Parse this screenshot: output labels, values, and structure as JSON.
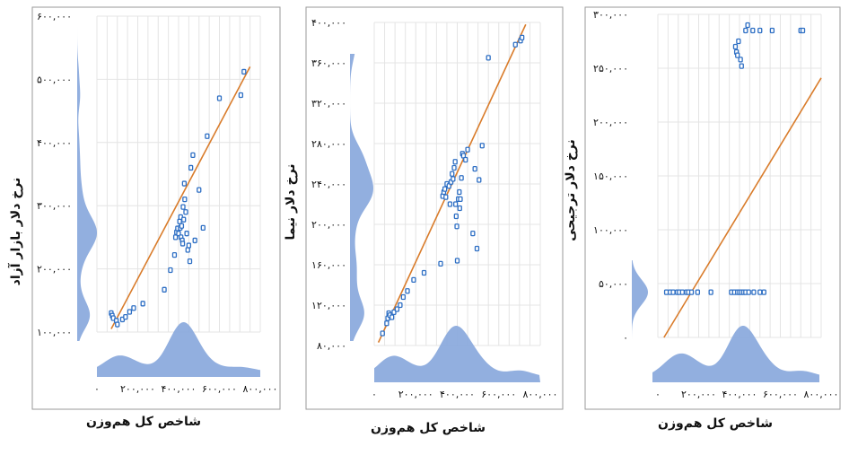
{
  "colors": {
    "point": "#2e6fc4",
    "trend": "#d97c2b",
    "density": "#86a6dc",
    "grid": "#e4e4e4",
    "frame": "#9a9a9a"
  },
  "chart_data": [
    {
      "type": "scatter",
      "title": "",
      "xlabel": "شاخص کل هم‌وزن",
      "ylabel": "نرخ دلار بازار آزاد",
      "xlim": [
        0,
        800000
      ],
      "ylim": [
        100000,
        600000
      ],
      "x_ticks": [
        "۰",
        "۲۰۰,۰۰۰",
        "۴۰۰,۰۰۰",
        "۶۰۰,۰۰۰",
        "۸۰۰,۰۰۰"
      ],
      "y_ticks": [
        "۱۰۰,۰۰۰",
        "۲۰۰,۰۰۰",
        "۳۰۰,۰۰۰",
        "۴۰۰,۰۰۰",
        "۵۰۰,۰۰۰",
        "۶۰۰,۰۰۰"
      ],
      "points": [
        [
          70000,
          130000
        ],
        [
          75000,
          126000
        ],
        [
          80000,
          122000
        ],
        [
          95000,
          118000
        ],
        [
          100000,
          112000
        ],
        [
          125000,
          120000
        ],
        [
          140000,
          124000
        ],
        [
          160000,
          132000
        ],
        [
          180000,
          138000
        ],
        [
          225000,
          145000
        ],
        [
          330000,
          167000
        ],
        [
          360000,
          198000
        ],
        [
          380000,
          222000
        ],
        [
          385000,
          250000
        ],
        [
          390000,
          258000
        ],
        [
          395000,
          264000
        ],
        [
          400000,
          256000
        ],
        [
          405000,
          275000
        ],
        [
          408000,
          265000
        ],
        [
          410000,
          282000
        ],
        [
          412000,
          250000
        ],
        [
          415000,
          268000
        ],
        [
          418000,
          245000
        ],
        [
          420000,
          240000
        ],
        [
          422000,
          298000
        ],
        [
          425000,
          278000
        ],
        [
          428000,
          335000
        ],
        [
          430000,
          310000
        ],
        [
          435000,
          290000
        ],
        [
          440000,
          256000
        ],
        [
          445000,
          230000
        ],
        [
          450000,
          237000
        ],
        [
          455000,
          212000
        ],
        [
          460000,
          360000
        ],
        [
          470000,
          380000
        ],
        [
          480000,
          245000
        ],
        [
          500000,
          325000
        ],
        [
          520000,
          265000
        ],
        [
          540000,
          410000
        ],
        [
          600000,
          470000
        ],
        [
          705000,
          475000
        ],
        [
          720000,
          512000
        ]
      ],
      "trend": [
        [
          70000,
          105000
        ],
        [
          750000,
          520000
        ]
      ]
    },
    {
      "type": "scatter",
      "title": "",
      "xlabel": "شاخص کل هم‌وزن",
      "ylabel": "نرخ دلار نیما",
      "xlim": [
        0,
        800000
      ],
      "ylim": [
        80000,
        400000
      ],
      "x_ticks": [
        "۰",
        "۲۰۰,۰۰۰",
        "۴۰۰,۰۰۰",
        "۶۰۰,۰۰۰",
        "۸۰۰,۰۰۰"
      ],
      "y_ticks": [
        "۸۰,۰۰۰",
        "۱۲۰,۰۰۰",
        "۱۶۰,۰۰۰",
        "۲۰۰,۰۰۰",
        "۲۴۰,۰۰۰",
        "۲۸۰,۰۰۰",
        "۳۲۰,۰۰۰",
        "۳۶۰,۰۰۰",
        "۴۰۰,۰۰۰"
      ],
      "points": [
        [
          40000,
          92000
        ],
        [
          60000,
          102000
        ],
        [
          65000,
          107000
        ],
        [
          70000,
          112000
        ],
        [
          75000,
          110000
        ],
        [
          85000,
          108000
        ],
        [
          95000,
          113000
        ],
        [
          110000,
          116000
        ],
        [
          125000,
          120000
        ],
        [
          140000,
          128000
        ],
        [
          160000,
          134000
        ],
        [
          190000,
          145000
        ],
        [
          240000,
          152000
        ],
        [
          320000,
          161000
        ],
        [
          330000,
          228000
        ],
        [
          335000,
          232000
        ],
        [
          340000,
          235000
        ],
        [
          345000,
          227000
        ],
        [
          350000,
          240000
        ],
        [
          360000,
          238000
        ],
        [
          365000,
          220000
        ],
        [
          370000,
          242000
        ],
        [
          375000,
          250000
        ],
        [
          380000,
          245000
        ],
        [
          385000,
          256000
        ],
        [
          390000,
          262000
        ],
        [
          392000,
          220000
        ],
        [
          395000,
          208000
        ],
        [
          398000,
          198000
        ],
        [
          400000,
          164000
        ],
        [
          405000,
          225000
        ],
        [
          410000,
          232000
        ],
        [
          412000,
          216000
        ],
        [
          415000,
          225000
        ],
        [
          420000,
          246000
        ],
        [
          425000,
          270000
        ],
        [
          430000,
          268000
        ],
        [
          440000,
          264000
        ],
        [
          450000,
          274000
        ],
        [
          475000,
          191000
        ],
        [
          485000,
          255000
        ],
        [
          495000,
          176000
        ],
        [
          505000,
          244000
        ],
        [
          520000,
          278000
        ],
        [
          550000,
          365000
        ],
        [
          680000,
          378000
        ],
        [
          705000,
          382000
        ],
        [
          712000,
          385000
        ]
      ],
      "trend": [
        [
          20000,
          83000
        ],
        [
          730000,
          398000
        ]
      ]
    },
    {
      "type": "scatter",
      "title": "",
      "xlabel": "شاخص کل هم‌وزن",
      "ylabel": "نرخ دلار ترجیحی",
      "xlim": [
        0,
        800000
      ],
      "ylim": [
        0,
        300000
      ],
      "x_ticks": [
        "۰",
        "۲۰۰,۰۰۰",
        "۴۰۰,۰۰۰",
        "۶۰۰,۰۰۰",
        "۸۰۰,۰۰۰"
      ],
      "y_ticks": [
        "۰",
        "۵۰,۰۰۰",
        "۱۰۰,۰۰۰",
        "۱۵۰,۰۰۰",
        "۲۰۰,۰۰۰",
        "۲۵۰,۰۰۰",
        "۳۰۰,۰۰۰"
      ],
      "points": [
        [
          42000,
          42000
        ],
        [
          60000,
          42000
        ],
        [
          75000,
          42000
        ],
        [
          95000,
          42000
        ],
        [
          105000,
          42000
        ],
        [
          120000,
          42000
        ],
        [
          140000,
          42000
        ],
        [
          150000,
          42000
        ],
        [
          165000,
          42000
        ],
        [
          195000,
          42000
        ],
        [
          260000,
          42000
        ],
        [
          360000,
          42000
        ],
        [
          375000,
          42000
        ],
        [
          390000,
          42000
        ],
        [
          400000,
          42000
        ],
        [
          410000,
          42000
        ],
        [
          420000,
          42000
        ],
        [
          430000,
          42000
        ],
        [
          445000,
          42000
        ],
        [
          470000,
          42000
        ],
        [
          500000,
          42000
        ],
        [
          520000,
          42000
        ],
        [
          380000,
          270000
        ],
        [
          385000,
          265000
        ],
        [
          390000,
          262000
        ],
        [
          395000,
          275000
        ],
        [
          405000,
          258000
        ],
        [
          410000,
          252000
        ],
        [
          430000,
          285000
        ],
        [
          440000,
          290000
        ],
        [
          465000,
          285000
        ],
        [
          500000,
          285000
        ],
        [
          560000,
          285000
        ],
        [
          700000,
          285000
        ],
        [
          710000,
          285000
        ]
      ],
      "trend": [
        [
          30000,
          0
        ],
        [
          800000,
          241000
        ]
      ]
    }
  ]
}
